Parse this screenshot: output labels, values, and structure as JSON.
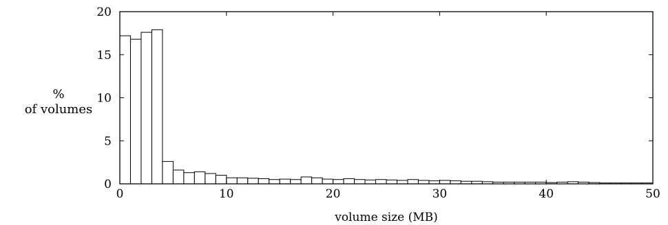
{
  "chart_data": {
    "type": "bar",
    "title": "",
    "xlabel": "volume size (MB)",
    "ylabel_lines": [
      "%",
      "of volumes"
    ],
    "xlim": [
      0,
      50
    ],
    "ylim": [
      0,
      20
    ],
    "xticks": [
      "0",
      "10",
      "20",
      "30",
      "40",
      "50"
    ],
    "yticks": [
      "0",
      "5",
      "10",
      "15",
      "20"
    ],
    "bin_width": 1,
    "bin_starts": [
      0,
      1,
      2,
      3,
      4,
      5,
      6,
      7,
      8,
      9,
      10,
      11,
      12,
      13,
      14,
      15,
      16,
      17,
      18,
      19,
      20,
      21,
      22,
      23,
      24,
      25,
      26,
      27,
      28,
      29,
      30,
      31,
      32,
      33,
      34,
      35,
      36,
      37,
      38,
      39,
      40,
      41,
      42,
      43,
      44,
      45,
      46,
      47,
      48,
      49
    ],
    "values": [
      17.2,
      16.8,
      17.6,
      17.9,
      2.6,
      1.6,
      1.3,
      1.4,
      1.2,
      1.0,
      0.7,
      0.7,
      0.65,
      0.6,
      0.5,
      0.55,
      0.5,
      0.8,
      0.7,
      0.55,
      0.5,
      0.6,
      0.5,
      0.45,
      0.5,
      0.45,
      0.4,
      0.5,
      0.4,
      0.35,
      0.4,
      0.35,
      0.3,
      0.3,
      0.25,
      0.2,
      0.2,
      0.2,
      0.2,
      0.2,
      0.15,
      0.2,
      0.25,
      0.2,
      0.15,
      0.1,
      0.1,
      0.1,
      0.1,
      0.1
    ],
    "grid": false,
    "legend": "none"
  }
}
